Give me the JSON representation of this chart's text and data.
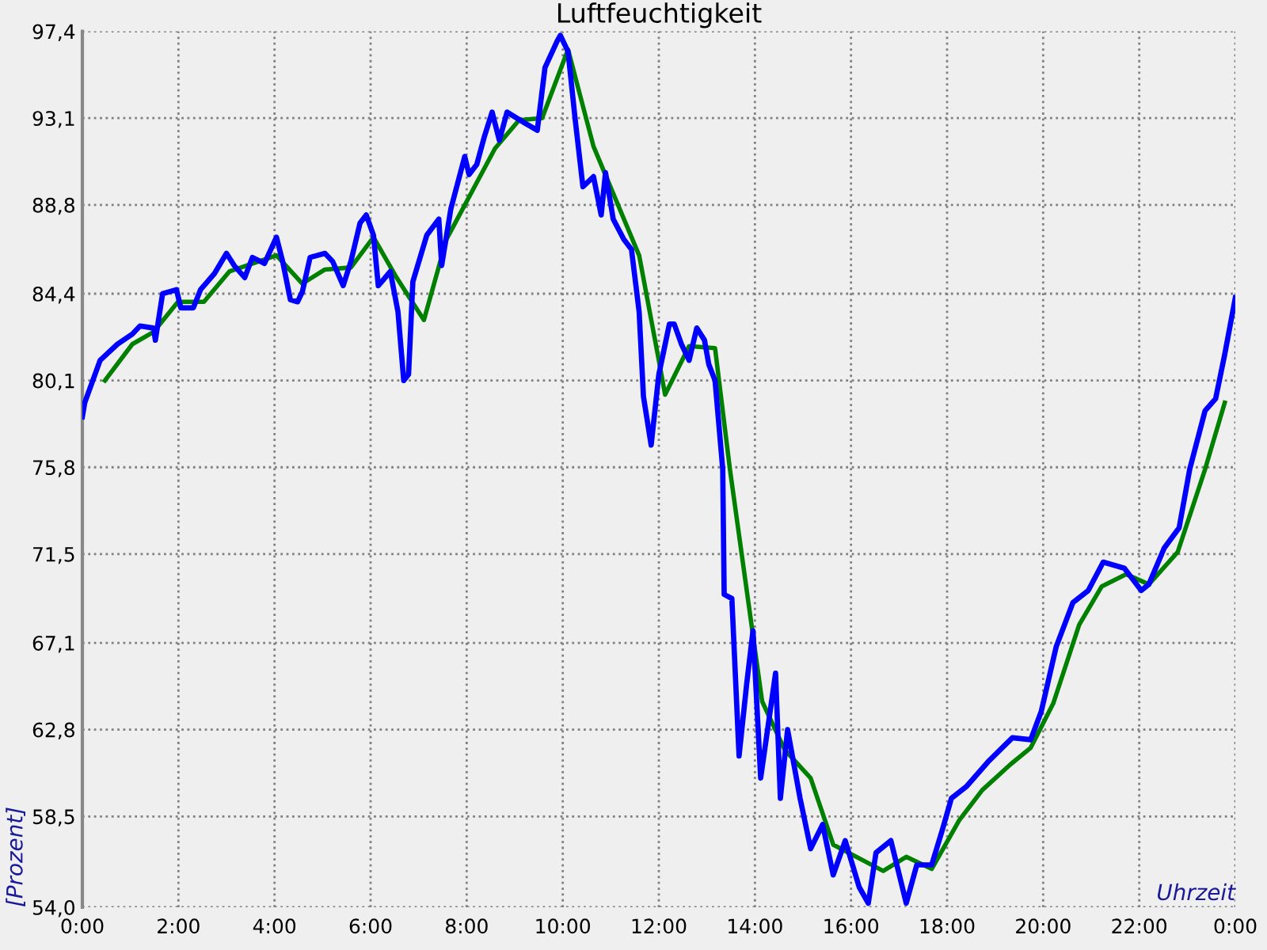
{
  "chart_data": {
    "type": "line",
    "title": "Luftfeuchtigkeit",
    "xlabel": "Uhrzeit",
    "ylabel": "[Prozent]",
    "xlim": [
      0,
      24
    ],
    "xticks": [
      {
        "value": 0,
        "label": "0:00"
      },
      {
        "value": 2,
        "label": "2:00"
      },
      {
        "value": 4,
        "label": "4:00"
      },
      {
        "value": 6,
        "label": "6:00"
      },
      {
        "value": 8,
        "label": "8:00"
      },
      {
        "value": 10,
        "label": "10:00"
      },
      {
        "value": 12,
        "label": "12:00"
      },
      {
        "value": 14,
        "label": "14:00"
      },
      {
        "value": 16,
        "label": "16:00"
      },
      {
        "value": 18,
        "label": "18:00"
      },
      {
        "value": 20,
        "label": "20:00"
      },
      {
        "value": 22,
        "label": "22:00"
      },
      {
        "value": 24,
        "label": "0:00"
      }
    ],
    "ylim": [
      54.0,
      97.4
    ],
    "yticks": [
      {
        "value": 54.0,
        "label": "54,0"
      },
      {
        "value": 58.5,
        "label": "58,5"
      },
      {
        "value": 62.8,
        "label": "62,8"
      },
      {
        "value": 67.1,
        "label": "67,1"
      },
      {
        "value": 71.5,
        "label": "71,5"
      },
      {
        "value": 75.8,
        "label": "75,8"
      },
      {
        "value": 80.1,
        "label": "80,1"
      },
      {
        "value": 84.4,
        "label": "84,4"
      },
      {
        "value": 88.8,
        "label": "88,8"
      },
      {
        "value": 93.1,
        "label": "93,1"
      },
      {
        "value": 97.4,
        "label": "97,4"
      }
    ],
    "grid": true,
    "line_style": "solid",
    "marker": "none",
    "series": [
      {
        "color": "#0000ff",
        "x": [
          0,
          0.05,
          0.37,
          0.73,
          1.04,
          1.2,
          1.48,
          1.52,
          1.67,
          1.96,
          2.05,
          2.31,
          2.46,
          2.75,
          3.0,
          3.16,
          3.38,
          3.54,
          3.79,
          4.04,
          4.17,
          4.33,
          4.48,
          4.58,
          4.74,
          5.05,
          5.21,
          5.43,
          5.59,
          5.78,
          5.91,
          6.06,
          6.16,
          6.41,
          6.57,
          6.69,
          6.79,
          6.88,
          7.17,
          7.42,
          7.48,
          7.67,
          7.96,
          8.05,
          8.21,
          8.37,
          8.53,
          8.68,
          8.84,
          9.25,
          9.47,
          9.63,
          9.88,
          9.95,
          10.11,
          10.26,
          10.42,
          10.64,
          10.8,
          10.89,
          11.05,
          11.27,
          11.43,
          11.59,
          11.68,
          11.84,
          12.0,
          12.22,
          12.32,
          12.47,
          12.63,
          12.79,
          12.95,
          13.04,
          13.17,
          13.33,
          13.36,
          13.52,
          13.67,
          13.83,
          13.96,
          14.12,
          14.43,
          14.53,
          14.68,
          14.94,
          15.16,
          15.41,
          15.63,
          15.88,
          16.17,
          16.36,
          16.52,
          16.83,
          17.15,
          17.37,
          17.68,
          17.91,
          18.09,
          18.41,
          18.85,
          19.36,
          19.74,
          19.96,
          20.27,
          20.62,
          20.94,
          21.25,
          21.69,
          22.04,
          22.2,
          22.52,
          22.83,
          23.05,
          23.37,
          23.59,
          23.78,
          24.0
        ],
        "values": [
          78.3,
          79.0,
          81.1,
          81.9,
          82.4,
          82.8,
          82.7,
          82.1,
          84.4,
          84.6,
          83.7,
          83.7,
          84.6,
          85.4,
          86.4,
          85.8,
          85.2,
          86.2,
          85.9,
          87.2,
          86.0,
          84.1,
          84.0,
          84.5,
          86.2,
          86.4,
          86.0,
          84.8,
          86.0,
          87.9,
          88.3,
          87.3,
          84.8,
          85.5,
          83.5,
          80.1,
          80.4,
          85.0,
          87.3,
          88.1,
          85.8,
          88.6,
          91.2,
          90.3,
          90.8,
          92.2,
          93.4,
          92.0,
          93.4,
          92.8,
          92.5,
          95.6,
          96.9,
          97.2,
          96.4,
          93.0,
          89.7,
          90.2,
          88.3,
          90.4,
          88.1,
          87.1,
          86.6,
          83.5,
          79.3,
          76.9,
          80.4,
          82.9,
          82.9,
          81.9,
          81.1,
          82.7,
          82.1,
          80.9,
          80.1,
          75.7,
          69.5,
          69.3,
          61.5,
          65.1,
          67.7,
          60.4,
          65.6,
          59.4,
          62.8,
          59.4,
          56.9,
          58.1,
          55.6,
          57.3,
          55.0,
          54.2,
          56.7,
          57.3,
          54.2,
          56.1,
          56.1,
          57.9,
          59.4,
          60.0,
          61.2,
          62.4,
          62.3,
          63.7,
          66.9,
          69.1,
          69.7,
          71.1,
          70.8,
          69.7,
          70.0,
          71.8,
          72.8,
          75.7,
          78.6,
          79.2,
          81.4,
          84.2
        ]
      },
      {
        "color": "#008000",
        "x": [
          0.47,
          1.04,
          1.48,
          1.99,
          2.53,
          3.06,
          4.04,
          4.58,
          5.05,
          5.59,
          6.06,
          6.54,
          7.11,
          7.58,
          8.59,
          9.09,
          9.57,
          10.11,
          10.64,
          11.59,
          12.0,
          12.13,
          12.63,
          13.17,
          13.48,
          14.15,
          14.62,
          15.16,
          15.63,
          16.67,
          17.15,
          17.68,
          18.25,
          18.73,
          19.33,
          19.74,
          20.21,
          20.75,
          21.22,
          21.73,
          22.2,
          22.8,
          23.37,
          23.78
        ],
        "values": [
          80.1,
          81.9,
          82.5,
          84.0,
          84.0,
          85.5,
          86.3,
          84.9,
          85.6,
          85.7,
          87.2,
          85.2,
          83.1,
          87.1,
          91.6,
          93.0,
          93.1,
          96.5,
          91.7,
          86.3,
          81.1,
          79.4,
          81.8,
          81.7,
          75.7,
          64.2,
          61.8,
          60.4,
          57.1,
          55.8,
          56.5,
          55.9,
          58.3,
          59.8,
          61.1,
          61.9,
          64.1,
          68.0,
          69.9,
          70.5,
          70.0,
          71.6,
          75.7,
          79.0
        ]
      }
    ]
  }
}
